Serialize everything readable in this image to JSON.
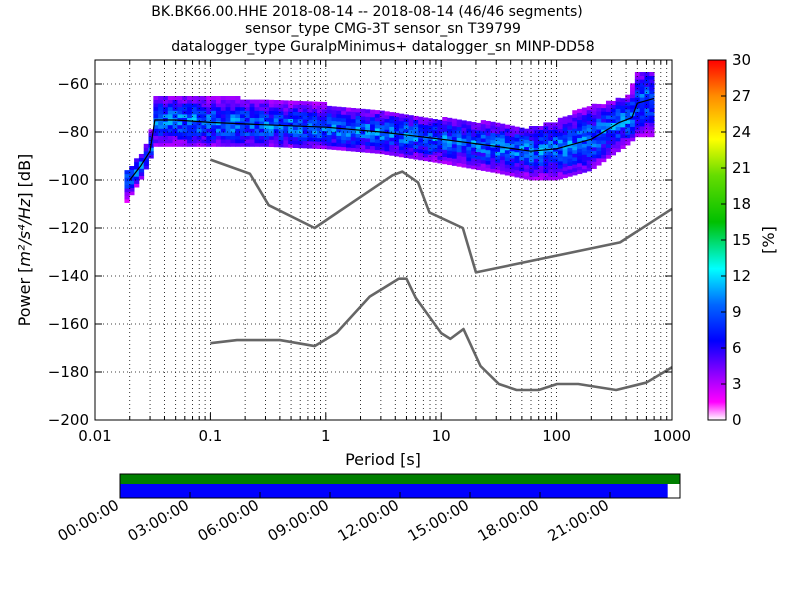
{
  "chart_data": {
    "type": "heatmap",
    "title_lines": [
      "BK.BK66.00.HHE   2018-08-14 -- 2018-08-14  (46/46 segments)",
      "sensor_type CMG-3T sensor_sn T39799",
      "datalogger_type GuralpMinimus+ datalogger_sn MINP-DD58"
    ],
    "xlabel": "Period [s]",
    "ylabel_prefix": "Power [",
    "ylabel_math": "m²/s⁴/Hz",
    "ylabel_suffix": "] [dB]",
    "x_scale": "log",
    "xlim": [
      0.01,
      1000
    ],
    "ylim": [
      -200,
      -50
    ],
    "x_ticks": [
      0.01,
      0.1,
      1,
      10,
      100,
      1000
    ],
    "x_tick_labels": [
      "0.01",
      "0.1",
      "1",
      "10",
      "100",
      "1000"
    ],
    "y_ticks": [
      -200,
      -180,
      -160,
      -140,
      -120,
      -100,
      -80,
      -60
    ],
    "y_tick_labels": [
      "−200",
      "−180",
      "−160",
      "−140",
      "−120",
      "−100",
      "−80",
      "−60"
    ],
    "grid": true,
    "colorbar": {
      "label": "[%]",
      "range": [
        0,
        30
      ],
      "ticks": [
        0,
        3,
        6,
        9,
        12,
        15,
        18,
        21,
        24,
        27,
        30
      ],
      "tick_labels": [
        "0",
        "3",
        "6",
        "9",
        "12",
        "15",
        "18",
        "21",
        "24",
        "27",
        "30"
      ],
      "colormap": "pqlx"
    },
    "nhnm_curve": {
      "x": [
        0.1,
        0.22,
        0.32,
        0.8,
        3.8,
        4.6,
        6.3,
        7.9,
        15.4,
        20,
        354.8,
        1000
      ],
      "y": [
        -91.5,
        -97.4,
        -110.5,
        -120,
        -98,
        -96.5,
        -101,
        -113.5,
        -120,
        -138.5,
        -126,
        -112
      ]
    },
    "nlnm_curve": {
      "x": [
        0.1,
        0.17,
        0.4,
        0.8,
        1.24,
        2.4,
        4.3,
        5,
        6,
        10,
        12,
        15.6,
        21.9,
        31.6,
        45,
        70,
        101,
        154,
        328,
        600,
        1000
      ],
      "y": [
        -168,
        -166.7,
        -166.7,
        -169.2,
        -163.7,
        -148.6,
        -141.1,
        -141.1,
        -149,
        -163.8,
        -166.2,
        -162.1,
        -177.5,
        -185,
        -187.5,
        -187.5,
        -185,
        -185,
        -187.5,
        -184.4,
        -178
      ]
    },
    "mode_curve": {
      "x": [
        0.02,
        0.025,
        0.03,
        0.033,
        0.05,
        0.1,
        0.3,
        1,
        3,
        10,
        30,
        60,
        100,
        200,
        350,
        450,
        500,
        700
      ],
      "y": [
        -100,
        -94,
        -88,
        -75,
        -75,
        -76,
        -77,
        -78,
        -80,
        -83,
        -86,
        -88,
        -87,
        -83,
        -76,
        -74,
        -68,
        -66
      ]
    },
    "pdf_band": {
      "x": [
        0.018,
        0.025,
        0.03,
        0.033,
        0.05,
        0.1,
        0.3,
        1,
        3,
        10,
        30,
        60,
        100,
        200,
        300,
        400,
        500,
        700
      ],
      "lower": [
        -111,
        -100,
        -92,
        -86,
        -86,
        -86,
        -86,
        -87,
        -89,
        -93,
        -97,
        -100,
        -100,
        -96,
        -90,
        -86,
        -82,
        -82
      ],
      "upper": [
        -98,
        -90,
        -82,
        -66,
        -66,
        -66,
        -67,
        -69,
        -71,
        -75,
        -77,
        -79,
        -76,
        -69,
        -68,
        -66,
        -56,
        -56
      ]
    },
    "coverage": {
      "time_tick_labels": [
        "00:00:00",
        "03:00:00",
        "06:00:00",
        "09:00:00",
        "12:00:00",
        "15:00:00",
        "18:00:00",
        "21:00:00"
      ],
      "data_fraction": 0.978,
      "colors": {
        "availability": "#007f00",
        "processed": "#0000ff"
      }
    }
  }
}
